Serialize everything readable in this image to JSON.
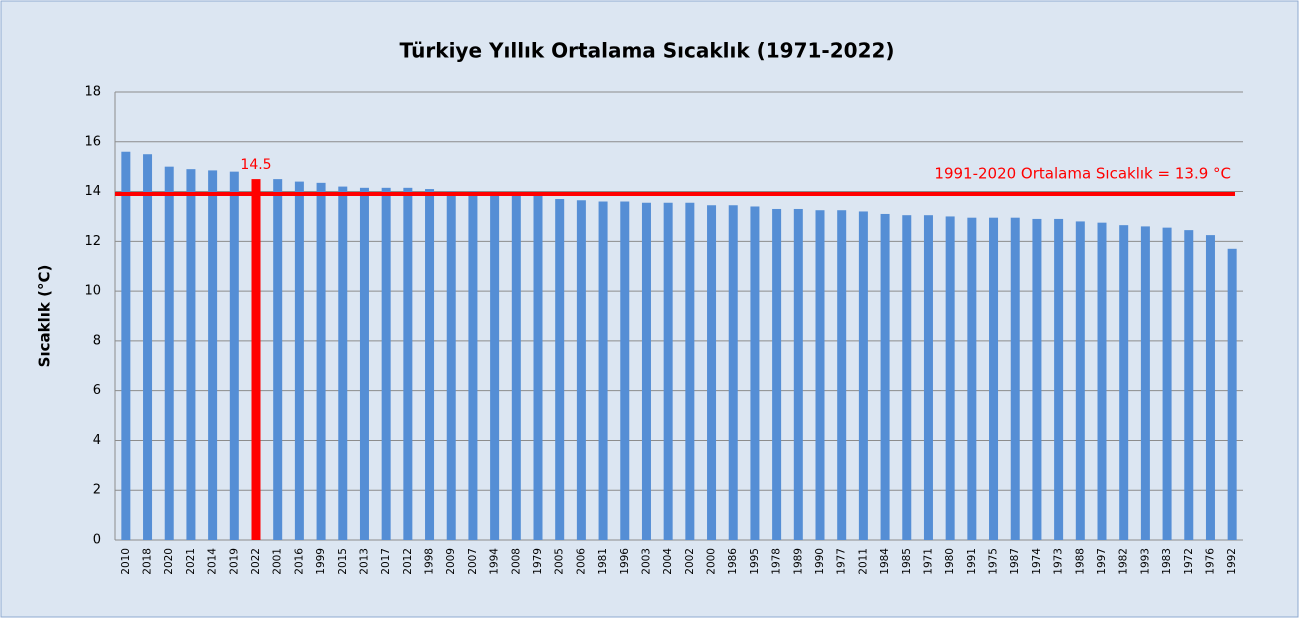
{
  "chart_data": {
    "type": "bar",
    "title": "Türkiye Yıllık Ortalama Sıcaklık (1971-2022)",
    "y_label": "Sıcaklık (°C)",
    "categories": [
      "2010",
      "2018",
      "2020",
      "2021",
      "2014",
      "2019",
      "2022",
      "2001",
      "2016",
      "1999",
      "2015",
      "2013",
      "2017",
      "2012",
      "1998",
      "2009",
      "2007",
      "1994",
      "2008",
      "1979",
      "2005",
      "2006",
      "1981",
      "1996",
      "2003",
      "2004",
      "2002",
      "2000",
      "1986",
      "1995",
      "1978",
      "1989",
      "1990",
      "1977",
      "2011",
      "1984",
      "1985",
      "1971",
      "1980",
      "1991",
      "1975",
      "1987",
      "1974",
      "1973",
      "1988",
      "1997",
      "1982",
      "1993",
      "1983",
      "1972",
      "1976",
      "1992"
    ],
    "values": [
      15.6,
      15.5,
      15.0,
      14.9,
      14.85,
      14.8,
      14.5,
      14.5,
      14.4,
      14.35,
      14.2,
      14.15,
      14.15,
      14.15,
      14.1,
      14.0,
      14.0,
      13.95,
      13.95,
      13.9,
      13.7,
      13.65,
      13.6,
      13.6,
      13.55,
      13.55,
      13.55,
      13.45,
      13.45,
      13.4,
      13.3,
      13.3,
      13.25,
      13.25,
      13.2,
      13.1,
      13.05,
      13.05,
      13.0,
      12.95,
      12.95,
      12.95,
      12.9,
      12.9,
      12.8,
      12.75,
      12.65,
      12.6,
      12.55,
      12.45,
      12.25,
      11.7
    ],
    "color": "#558ed5",
    "highlight": {
      "category": "2022",
      "color": "#ff0000"
    },
    "reference_line": {
      "value": 13.9,
      "label": "1991-2020  Ortalama Sıcaklık = 13.9 °C",
      "color": "#ff0000"
    },
    "ylim": [
      0,
      18
    ],
    "yticks": [
      0,
      2,
      4,
      6,
      8,
      10,
      12,
      14,
      16,
      18
    ],
    "grid": true
  }
}
